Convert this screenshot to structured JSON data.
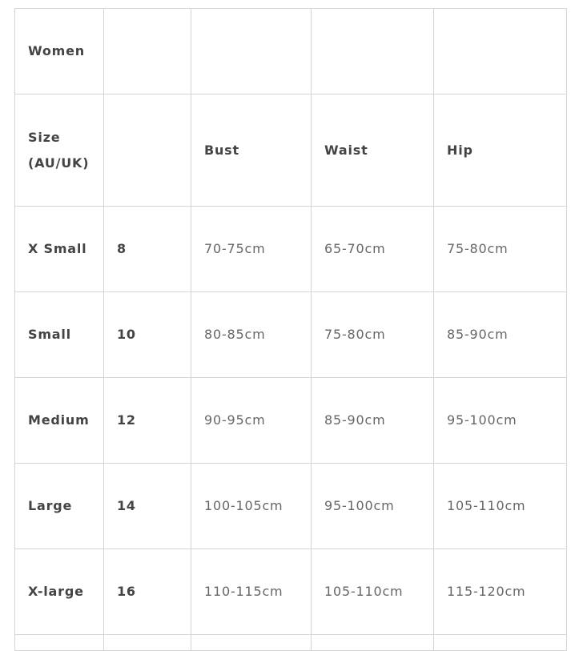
{
  "title": "Women",
  "headers": {
    "size": "Size (AU/UK)",
    "bust": "Bust",
    "waist": "Waist",
    "hip": "Hip"
  },
  "rows": [
    {
      "name": "X Small",
      "au": "8",
      "bust": "70-75cm",
      "waist": "65-70cm",
      "hip": "75-80cm"
    },
    {
      "name": "Small",
      "au": "10",
      "bust": "80-85cm",
      "waist": "75-80cm",
      "hip": "85-90cm"
    },
    {
      "name": "Medium",
      "au": "12",
      "bust": "90-95cm",
      "waist": "85-90cm",
      "hip": "95-100cm"
    },
    {
      "name": "Large",
      "au": "14",
      "bust": "100-105cm",
      "waist": "95-100cm",
      "hip": "105-110cm"
    },
    {
      "name": "X-large",
      "au": "16",
      "bust": "110-115cm",
      "waist": "105-110cm",
      "hip": "115-120cm"
    }
  ]
}
